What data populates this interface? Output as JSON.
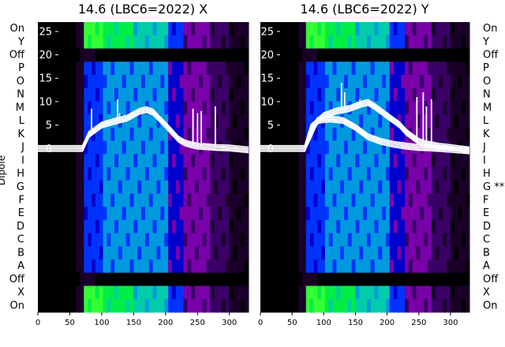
{
  "chart_data": [
    {
      "type": "heatmap",
      "title": "14.6 (LBC6=2022) X",
      "ylabel": "Dipole",
      "row_labels_left": [
        "On",
        "Y",
        "Off",
        "P",
        "O",
        "N",
        "M",
        "L",
        "K",
        "J",
        "I",
        "H",
        "G",
        "F",
        "E",
        "D",
        "C",
        "B",
        "A",
        "Off",
        "X",
        "On"
      ],
      "xticks": [
        "0",
        "50",
        "100",
        "150",
        "200",
        "250",
        "300"
      ],
      "xlim": [
        0,
        330
      ],
      "inner_yticks": [
        "25",
        "20",
        "15",
        "10",
        "5",
        "0"
      ],
      "inner_ylim": [
        -35,
        27
      ],
      "curve_bands": [
        {
          "name": "",
          "x": [
            0,
            60,
            70,
            80,
            100,
            120,
            140,
            160,
            170,
            180,
            200,
            220,
            230,
            240,
            250,
            260,
            270,
            280,
            300,
            330
          ],
          "y": [
            0,
            0,
            0,
            3.0,
            5.0,
            5.8,
            6.5,
            8.0,
            8.3,
            7.8,
            5.0,
            2.0,
            1.2,
            0.8,
            0.5,
            0.4,
            0.3,
            0.2,
            0.1,
            -0.3
          ]
        }
      ],
      "spikes": [
        {
          "x": 84,
          "y": 8.5
        },
        {
          "x": 125,
          "y": 10.5
        },
        {
          "x": 128,
          "y": 7.5
        },
        {
          "x": 243,
          "y": 8.5
        },
        {
          "x": 250,
          "y": 7.5
        },
        {
          "x": 256,
          "y": 8.0
        },
        {
          "x": 278,
          "y": 9.0
        }
      ]
    },
    {
      "type": "heatmap",
      "title": "14.6 (LBC6=2022) Y",
      "row_labels_right": [
        "On",
        "Y",
        "Off",
        "P",
        "O",
        "N",
        "M",
        "L",
        "K",
        "J",
        "I",
        "H",
        "G **",
        "F",
        "E",
        "D",
        "C",
        "B",
        "A",
        "Off",
        "X",
        "On"
      ],
      "xticks": [
        "0",
        "50",
        "100",
        "150",
        "200",
        "250",
        "300"
      ],
      "xlim": [
        0,
        330
      ],
      "inner_yticks": [
        "25",
        "20",
        "15",
        "10",
        "5",
        "0"
      ],
      "inner_ylim": [
        -35,
        27
      ],
      "curve_bands": [
        {
          "name": "",
          "x": [
            0,
            60,
            70,
            80,
            100,
            120,
            140,
            160,
            170,
            180,
            200,
            220,
            230,
            240,
            250,
            260,
            270,
            280,
            300,
            330
          ],
          "y": [
            0,
            0,
            0,
            4.5,
            7.0,
            8.0,
            8.5,
            9.5,
            9.8,
            9.0,
            7.0,
            5.0,
            3.5,
            2.5,
            1.5,
            1.0,
            0.8,
            0.5,
            0.2,
            -0.3
          ]
        },
        {
          "name": "",
          "x": [
            70,
            90,
            110,
            130,
            150,
            170,
            190,
            210,
            230,
            250,
            270,
            300,
            330
          ],
          "y": [
            0,
            6.0,
            6.3,
            6.0,
            4.5,
            2.5,
            1.5,
            0.9,
            0.5,
            0.2,
            0.1,
            -0.2,
            -0.5
          ]
        }
      ],
      "spikes": [
        {
          "x": 128,
          "y": 14.0
        },
        {
          "x": 133,
          "y": 12.0
        },
        {
          "x": 157,
          "y": 10.5
        },
        {
          "x": 247,
          "y": 11.0
        },
        {
          "x": 257,
          "y": 12.0
        },
        {
          "x": 262,
          "y": 9.0
        },
        {
          "x": 270,
          "y": 10.5
        }
      ]
    }
  ],
  "colors": {
    "spectrum": [
      "#000000",
      "#1a0028",
      "#3a0066",
      "#7a00aa",
      "#0000cc",
      "#0033ff",
      "#0099dd",
      "#00ccaa",
      "#00ee44",
      "#33ff33"
    ],
    "curve": "#ffffff"
  }
}
